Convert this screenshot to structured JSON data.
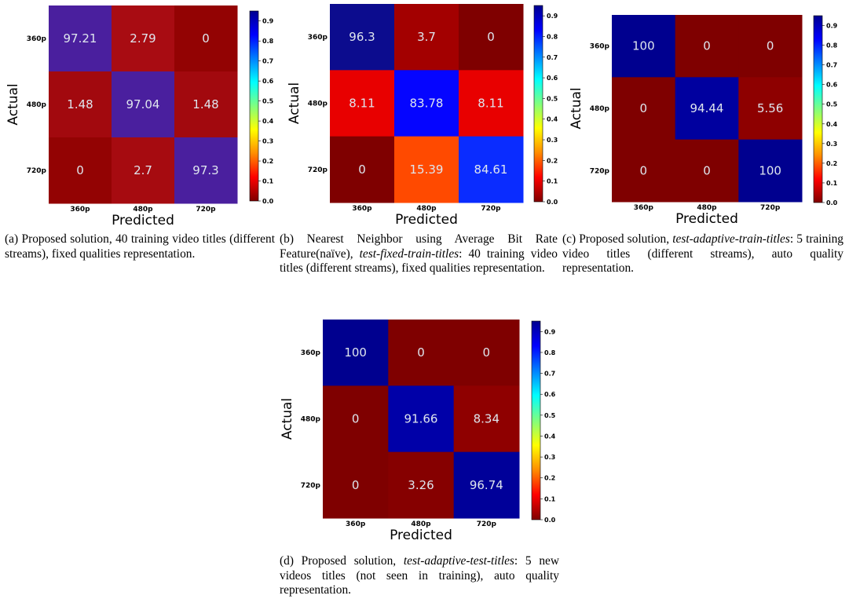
{
  "colormap": [
    "#7f0000",
    "#ff0000",
    "#ff8c00",
    "#ffff00",
    "#7fff7f",
    "#00ffff",
    "#0080ff",
    "#0000ff",
    "#00008f"
  ],
  "chart_data": [
    {
      "type": "heatmap",
      "id": "a",
      "xlabel": "Predicted",
      "ylabel": "Actual",
      "x_categories": [
        "360p",
        "480p",
        "720p"
      ],
      "y_categories": [
        "360p",
        "480p",
        "720p"
      ],
      "values": [
        [
          97.21,
          2.79,
          0
        ],
        [
          1.48,
          97.04,
          1.48
        ],
        [
          0,
          2.7,
          97.3
        ]
      ],
      "cell_colors": [
        [
          "#4a1f9e",
          "#a80c12",
          "#930303"
        ],
        [
          "#a2090e",
          "#4a1f9e",
          "#a2090e"
        ],
        [
          "#930303",
          "#a60b10",
          "#4a1f9e"
        ]
      ],
      "colorbar_ticks": [
        "0.0",
        "0.1",
        "0.2",
        "0.3",
        "0.4",
        "0.5",
        "0.6",
        "0.7",
        "0.8",
        "0.9"
      ]
    },
    {
      "type": "heatmap",
      "id": "b",
      "xlabel": "Predicted",
      "ylabel": "Actual",
      "x_categories": [
        "360p",
        "480p",
        "720p"
      ],
      "y_categories": [
        "360p",
        "480p",
        "720p"
      ],
      "values": [
        [
          96.3,
          3.7,
          0
        ],
        [
          8.11,
          83.78,
          8.11
        ],
        [
          0,
          15.39,
          84.61
        ]
      ],
      "cell_colors": [
        [
          "#0c0c8e",
          "#a30000",
          "#7f0000"
        ],
        [
          "#e80000",
          "#0505ff",
          "#e80000"
        ],
        [
          "#7f0000",
          "#ff4a00",
          "#0a2cff"
        ]
      ],
      "colorbar_ticks": [
        "0.0",
        "0.1",
        "0.2",
        "0.3",
        "0.4",
        "0.5",
        "0.6",
        "0.7",
        "0.8",
        "0.9"
      ]
    },
    {
      "type": "heatmap",
      "id": "c",
      "xlabel": "Predicted",
      "ylabel": "Actual",
      "x_categories": [
        "360p",
        "480p",
        "720p"
      ],
      "y_categories": [
        "360p",
        "480p",
        "720p"
      ],
      "values": [
        [
          100,
          0,
          0
        ],
        [
          0,
          94.44,
          5.56
        ],
        [
          0,
          0,
          100
        ]
      ],
      "cell_colors": [
        [
          "#00008f",
          "#7f0000",
          "#7f0000"
        ],
        [
          "#7f0000",
          "#00009f",
          "#8e0000"
        ],
        [
          "#7f0000",
          "#7f0000",
          "#00008f"
        ]
      ],
      "colorbar_ticks": [
        "0.0",
        "0.1",
        "0.2",
        "0.3",
        "0.4",
        "0.5",
        "0.6",
        "0.7",
        "0.8",
        "0.9"
      ]
    },
    {
      "type": "heatmap",
      "id": "d",
      "xlabel": "Predicted",
      "ylabel": "Actual",
      "x_categories": [
        "360p",
        "480p",
        "720p"
      ],
      "y_categories": [
        "360p",
        "480p",
        "720p"
      ],
      "values": [
        [
          100,
          0,
          0
        ],
        [
          0,
          91.66,
          8.34
        ],
        [
          0,
          3.26,
          96.74
        ]
      ],
      "cell_colors": [
        [
          "#00008f",
          "#7f0000",
          "#7f0000"
        ],
        [
          "#7f0000",
          "#0000a8",
          "#8f0000"
        ],
        [
          "#7f0000",
          "#860000",
          "#000099"
        ]
      ],
      "colorbar_ticks": [
        "0.0",
        "0.1",
        "0.2",
        "0.3",
        "0.4",
        "0.5",
        "0.6",
        "0.7",
        "0.8",
        "0.9"
      ]
    }
  ],
  "captions": {
    "a": {
      "prefix": "(a) Proposed solution, 40 training video titles (different streams), fixed qualities representation."
    },
    "b": {
      "prefix": "(b) Nearest Neighbor using Average Bit Rate Feature(naïve), ",
      "italic": "test-fixed-train-titles",
      "suffix": ": 40 training video titles (different streams), fixed qualities representation."
    },
    "c": {
      "prefix": "(c) Proposed solution, ",
      "italic": "test-adaptive-train-titles",
      "suffix": ": 5 training video titles (different streams), auto quality representation."
    },
    "d": {
      "prefix": "(d) Proposed solution, ",
      "italic": "test-adaptive-test-titles",
      "suffix": ": 5 new videos titles (not seen in training), auto quality representation."
    }
  }
}
